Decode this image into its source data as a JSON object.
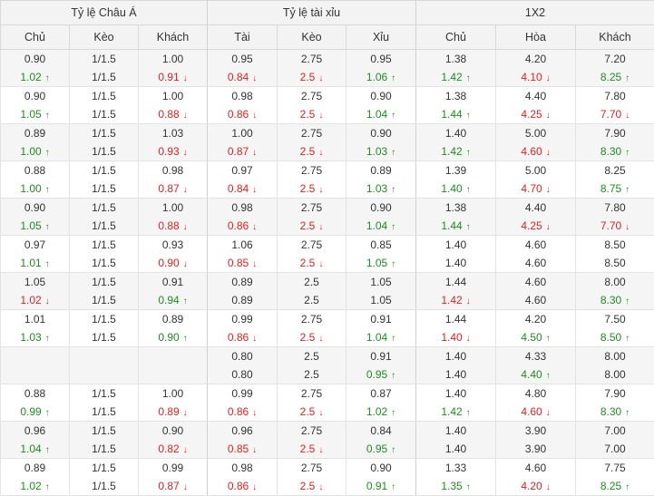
{
  "header": {
    "groups": [
      "Tỷ lệ Châu Á",
      "Tỷ lệ tài xỉu",
      "1X2"
    ],
    "columns": [
      "Chủ",
      "Kèo",
      "Khách",
      "Tài",
      "Kèo",
      "Xỉu",
      "Chủ",
      "Hòa",
      "Khách"
    ]
  },
  "icons": {
    "up": "arrow-up-icon",
    "down": "arrow-down-icon"
  },
  "colors": {
    "up": "#1e8c1e",
    "down": "#e02020",
    "neutral": "#333333"
  },
  "rows": [
    {
      "cells": [
        [
          {
            "t": "0.90",
            "d": "n"
          },
          {
            "t": "1.02",
            "d": "up"
          }
        ],
        [
          {
            "t": "1/1.5",
            "d": "n"
          },
          {
            "t": "1/1.5",
            "d": "n"
          }
        ],
        [
          {
            "t": "1.00",
            "d": "n"
          },
          {
            "t": "0.91",
            "d": "down"
          }
        ],
        [
          {
            "t": "0.95",
            "d": "n"
          },
          {
            "t": "0.84",
            "d": "down"
          }
        ],
        [
          {
            "t": "2.75",
            "d": "n"
          },
          {
            "t": "2.5",
            "d": "down"
          }
        ],
        [
          {
            "t": "0.95",
            "d": "n"
          },
          {
            "t": "1.06",
            "d": "up"
          }
        ],
        [
          {
            "t": "1.38",
            "d": "n"
          },
          {
            "t": "1.42",
            "d": "up"
          }
        ],
        [
          {
            "t": "4.20",
            "d": "n"
          },
          {
            "t": "4.10",
            "d": "down"
          }
        ],
        [
          {
            "t": "7.20",
            "d": "n"
          },
          {
            "t": "8.25",
            "d": "up"
          }
        ]
      ]
    },
    {
      "cells": [
        [
          {
            "t": "0.90",
            "d": "n"
          },
          {
            "t": "1.05",
            "d": "up"
          }
        ],
        [
          {
            "t": "1/1.5",
            "d": "n"
          },
          {
            "t": "1/1.5",
            "d": "n"
          }
        ],
        [
          {
            "t": "1.00",
            "d": "n"
          },
          {
            "t": "0.88",
            "d": "down"
          }
        ],
        [
          {
            "t": "0.98",
            "d": "n"
          },
          {
            "t": "0.86",
            "d": "down"
          }
        ],
        [
          {
            "t": "2.75",
            "d": "n"
          },
          {
            "t": "2.5",
            "d": "down"
          }
        ],
        [
          {
            "t": "0.90",
            "d": "n"
          },
          {
            "t": "1.04",
            "d": "up"
          }
        ],
        [
          {
            "t": "1.38",
            "d": "n"
          },
          {
            "t": "1.44",
            "d": "up"
          }
        ],
        [
          {
            "t": "4.40",
            "d": "n"
          },
          {
            "t": "4.25",
            "d": "down"
          }
        ],
        [
          {
            "t": "7.80",
            "d": "n"
          },
          {
            "t": "7.70",
            "d": "down"
          }
        ]
      ]
    },
    {
      "cells": [
        [
          {
            "t": "0.89",
            "d": "n"
          },
          {
            "t": "1.00",
            "d": "up"
          }
        ],
        [
          {
            "t": "1/1.5",
            "d": "n"
          },
          {
            "t": "1/1.5",
            "d": "n"
          }
        ],
        [
          {
            "t": "1.03",
            "d": "n"
          },
          {
            "t": "0.93",
            "d": "down"
          }
        ],
        [
          {
            "t": "1.00",
            "d": "n"
          },
          {
            "t": "0.87",
            "d": "down"
          }
        ],
        [
          {
            "t": "2.75",
            "d": "n"
          },
          {
            "t": "2.5",
            "d": "down"
          }
        ],
        [
          {
            "t": "0.90",
            "d": "n"
          },
          {
            "t": "1.03",
            "d": "up"
          }
        ],
        [
          {
            "t": "1.40",
            "d": "n"
          },
          {
            "t": "1.42",
            "d": "up"
          }
        ],
        [
          {
            "t": "5.00",
            "d": "n"
          },
          {
            "t": "4.60",
            "d": "down"
          }
        ],
        [
          {
            "t": "7.90",
            "d": "n"
          },
          {
            "t": "8.30",
            "d": "up"
          }
        ]
      ]
    },
    {
      "cells": [
        [
          {
            "t": "0.88",
            "d": "n"
          },
          {
            "t": "1.00",
            "d": "up"
          }
        ],
        [
          {
            "t": "1/1.5",
            "d": "n"
          },
          {
            "t": "1/1.5",
            "d": "n"
          }
        ],
        [
          {
            "t": "0.98",
            "d": "n"
          },
          {
            "t": "0.87",
            "d": "down"
          }
        ],
        [
          {
            "t": "0.97",
            "d": "n"
          },
          {
            "t": "0.84",
            "d": "down"
          }
        ],
        [
          {
            "t": "2.75",
            "d": "n"
          },
          {
            "t": "2.5",
            "d": "down"
          }
        ],
        [
          {
            "t": "0.89",
            "d": "n"
          },
          {
            "t": "1.03",
            "d": "up"
          }
        ],
        [
          {
            "t": "1.39",
            "d": "n"
          },
          {
            "t": "1.40",
            "d": "up"
          }
        ],
        [
          {
            "t": "5.00",
            "d": "n"
          },
          {
            "t": "4.70",
            "d": "down"
          }
        ],
        [
          {
            "t": "8.25",
            "d": "n"
          },
          {
            "t": "8.75",
            "d": "up"
          }
        ]
      ]
    },
    {
      "cells": [
        [
          {
            "t": "0.90",
            "d": "n"
          },
          {
            "t": "1.05",
            "d": "up"
          }
        ],
        [
          {
            "t": "1/1.5",
            "d": "n"
          },
          {
            "t": "1/1.5",
            "d": "n"
          }
        ],
        [
          {
            "t": "1.00",
            "d": "n"
          },
          {
            "t": "0.88",
            "d": "down"
          }
        ],
        [
          {
            "t": "0.98",
            "d": "n"
          },
          {
            "t": "0.86",
            "d": "down"
          }
        ],
        [
          {
            "t": "2.75",
            "d": "n"
          },
          {
            "t": "2.5",
            "d": "down"
          }
        ],
        [
          {
            "t": "0.90",
            "d": "n"
          },
          {
            "t": "1.04",
            "d": "up"
          }
        ],
        [
          {
            "t": "1.38",
            "d": "n"
          },
          {
            "t": "1.44",
            "d": "up"
          }
        ],
        [
          {
            "t": "4.40",
            "d": "n"
          },
          {
            "t": "4.25",
            "d": "down"
          }
        ],
        [
          {
            "t": "7.80",
            "d": "n"
          },
          {
            "t": "7.70",
            "d": "down"
          }
        ]
      ]
    },
    {
      "cells": [
        [
          {
            "t": "0.97",
            "d": "n"
          },
          {
            "t": "1.01",
            "d": "up"
          }
        ],
        [
          {
            "t": "1/1.5",
            "d": "n"
          },
          {
            "t": "1/1.5",
            "d": "n"
          }
        ],
        [
          {
            "t": "0.93",
            "d": "n"
          },
          {
            "t": "0.90",
            "d": "down"
          }
        ],
        [
          {
            "t": "1.06",
            "d": "n"
          },
          {
            "t": "0.85",
            "d": "down"
          }
        ],
        [
          {
            "t": "2.75",
            "d": "n"
          },
          {
            "t": "2.5",
            "d": "down"
          }
        ],
        [
          {
            "t": "0.85",
            "d": "n"
          },
          {
            "t": "1.05",
            "d": "up"
          }
        ],
        [
          {
            "t": "1.40",
            "d": "n"
          },
          {
            "t": "1.40",
            "d": "n"
          }
        ],
        [
          {
            "t": "4.60",
            "d": "n"
          },
          {
            "t": "4.60",
            "d": "n"
          }
        ],
        [
          {
            "t": "8.50",
            "d": "n"
          },
          {
            "t": "8.50",
            "d": "n"
          }
        ]
      ]
    },
    {
      "cells": [
        [
          {
            "t": "1.05",
            "d": "n"
          },
          {
            "t": "1.02",
            "d": "down"
          }
        ],
        [
          {
            "t": "1/1.5",
            "d": "n"
          },
          {
            "t": "1/1.5",
            "d": "n"
          }
        ],
        [
          {
            "t": "0.91",
            "d": "n"
          },
          {
            "t": "0.94",
            "d": "up"
          }
        ],
        [
          {
            "t": "0.89",
            "d": "n"
          },
          {
            "t": "0.89",
            "d": "n"
          }
        ],
        [
          {
            "t": "2.5",
            "d": "n"
          },
          {
            "t": "2.5",
            "d": "n"
          }
        ],
        [
          {
            "t": "1.05",
            "d": "n"
          },
          {
            "t": "1.05",
            "d": "n"
          }
        ],
        [
          {
            "t": "1.44",
            "d": "n"
          },
          {
            "t": "1.42",
            "d": "down"
          }
        ],
        [
          {
            "t": "4.60",
            "d": "n"
          },
          {
            "t": "4.60",
            "d": "n"
          }
        ],
        [
          {
            "t": "8.00",
            "d": "n"
          },
          {
            "t": "8.30",
            "d": "up"
          }
        ]
      ]
    },
    {
      "cells": [
        [
          {
            "t": "1.01",
            "d": "n"
          },
          {
            "t": "1.03",
            "d": "up"
          }
        ],
        [
          {
            "t": "1/1.5",
            "d": "n"
          },
          {
            "t": "1/1.5",
            "d": "n"
          }
        ],
        [
          {
            "t": "0.89",
            "d": "n"
          },
          {
            "t": "0.90",
            "d": "up"
          }
        ],
        [
          {
            "t": "0.99",
            "d": "n"
          },
          {
            "t": "0.86",
            "d": "down"
          }
        ],
        [
          {
            "t": "2.75",
            "d": "n"
          },
          {
            "t": "2.5",
            "d": "down"
          }
        ],
        [
          {
            "t": "0.91",
            "d": "n"
          },
          {
            "t": "1.04",
            "d": "up"
          }
        ],
        [
          {
            "t": "1.44",
            "d": "n"
          },
          {
            "t": "1.40",
            "d": "down"
          }
        ],
        [
          {
            "t": "4.20",
            "d": "n"
          },
          {
            "t": "4.50",
            "d": "up"
          }
        ],
        [
          {
            "t": "7.50",
            "d": "n"
          },
          {
            "t": "8.50",
            "d": "up"
          }
        ]
      ]
    },
    {
      "cells": [
        [],
        [],
        [],
        [
          {
            "t": "0.80",
            "d": "n"
          },
          {
            "t": "0.80",
            "d": "n"
          }
        ],
        [
          {
            "t": "2.5",
            "d": "n"
          },
          {
            "t": "2.5",
            "d": "n"
          }
        ],
        [
          {
            "t": "0.91",
            "d": "n"
          },
          {
            "t": "0.95",
            "d": "up"
          }
        ],
        [
          {
            "t": "1.40",
            "d": "n"
          },
          {
            "t": "1.40",
            "d": "n"
          }
        ],
        [
          {
            "t": "4.33",
            "d": "n"
          },
          {
            "t": "4.40",
            "d": "up"
          }
        ],
        [
          {
            "t": "8.00",
            "d": "n"
          },
          {
            "t": "8.00",
            "d": "n"
          }
        ]
      ]
    },
    {
      "cells": [
        [
          {
            "t": "0.88",
            "d": "n"
          },
          {
            "t": "0.99",
            "d": "up"
          }
        ],
        [
          {
            "t": "1/1.5",
            "d": "n"
          },
          {
            "t": "1/1.5",
            "d": "n"
          }
        ],
        [
          {
            "t": "1.00",
            "d": "n"
          },
          {
            "t": "0.89",
            "d": "down"
          }
        ],
        [
          {
            "t": "0.99",
            "d": "n"
          },
          {
            "t": "0.86",
            "d": "down"
          }
        ],
        [
          {
            "t": "2.75",
            "d": "n"
          },
          {
            "t": "2.5",
            "d": "down"
          }
        ],
        [
          {
            "t": "0.87",
            "d": "n"
          },
          {
            "t": "1.02",
            "d": "up"
          }
        ],
        [
          {
            "t": "1.40",
            "d": "n"
          },
          {
            "t": "1.42",
            "d": "up"
          }
        ],
        [
          {
            "t": "4.80",
            "d": "n"
          },
          {
            "t": "4.60",
            "d": "down"
          }
        ],
        [
          {
            "t": "7.90",
            "d": "n"
          },
          {
            "t": "8.30",
            "d": "up"
          }
        ]
      ]
    },
    {
      "cells": [
        [
          {
            "t": "0.96",
            "d": "n"
          },
          {
            "t": "1.04",
            "d": "up"
          }
        ],
        [
          {
            "t": "1/1.5",
            "d": "n"
          },
          {
            "t": "1/1.5",
            "d": "n"
          }
        ],
        [
          {
            "t": "0.90",
            "d": "n"
          },
          {
            "t": "0.82",
            "d": "down"
          }
        ],
        [
          {
            "t": "0.96",
            "d": "n"
          },
          {
            "t": "0.85",
            "d": "down"
          }
        ],
        [
          {
            "t": "2.75",
            "d": "n"
          },
          {
            "t": "2.5",
            "d": "down"
          }
        ],
        [
          {
            "t": "0.84",
            "d": "n"
          },
          {
            "t": "0.95",
            "d": "up"
          }
        ],
        [
          {
            "t": "1.40",
            "d": "n"
          },
          {
            "t": "1.40",
            "d": "n"
          }
        ],
        [
          {
            "t": "3.90",
            "d": "n"
          },
          {
            "t": "3.90",
            "d": "n"
          }
        ],
        [
          {
            "t": "7.00",
            "d": "n"
          },
          {
            "t": "7.00",
            "d": "n"
          }
        ]
      ]
    },
    {
      "cells": [
        [
          {
            "t": "0.89",
            "d": "n"
          },
          {
            "t": "1.02",
            "d": "up"
          }
        ],
        [
          {
            "t": "1/1.5",
            "d": "n"
          },
          {
            "t": "1/1.5",
            "d": "n"
          }
        ],
        [
          {
            "t": "0.99",
            "d": "n"
          },
          {
            "t": "0.87",
            "d": "down"
          }
        ],
        [
          {
            "t": "0.98",
            "d": "n"
          },
          {
            "t": "0.86",
            "d": "down"
          }
        ],
        [
          {
            "t": "2.75",
            "d": "n"
          },
          {
            "t": "2.5",
            "d": "down"
          }
        ],
        [
          {
            "t": "0.90",
            "d": "n"
          },
          {
            "t": "0.91",
            "d": "up"
          }
        ],
        [
          {
            "t": "1.33",
            "d": "n"
          },
          {
            "t": "1.35",
            "d": "up"
          }
        ],
        [
          {
            "t": "4.60",
            "d": "n"
          },
          {
            "t": "4.20",
            "d": "down"
          }
        ],
        [
          {
            "t": "7.75",
            "d": "n"
          },
          {
            "t": "8.25",
            "d": "up"
          }
        ]
      ]
    }
  ]
}
